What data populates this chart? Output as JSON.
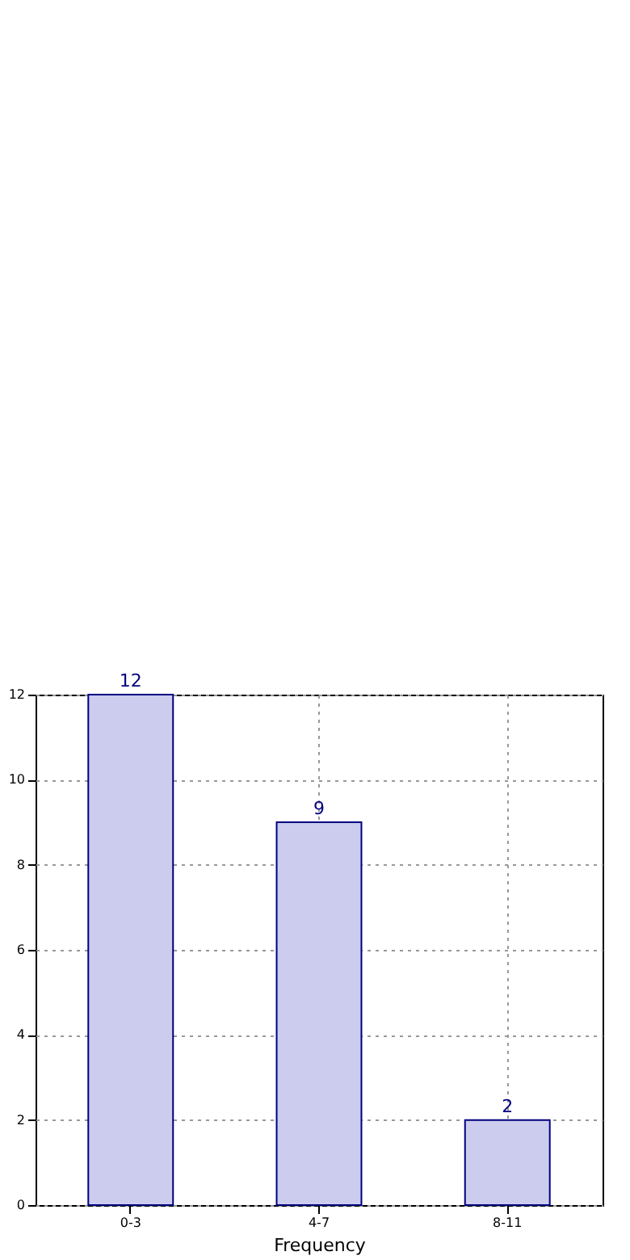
{
  "chart_data": {
    "type": "bar",
    "xlabel": "Frequency",
    "categories": [
      "0-3",
      "4-7",
      "8-11"
    ],
    "values": [
      12,
      9,
      2
    ],
    "color": "#ccccee",
    "ylim": [
      0,
      12
    ],
    "yticks": [
      0,
      2,
      4,
      6,
      8,
      10,
      12
    ],
    "grid": true,
    "data_labels": true
  }
}
